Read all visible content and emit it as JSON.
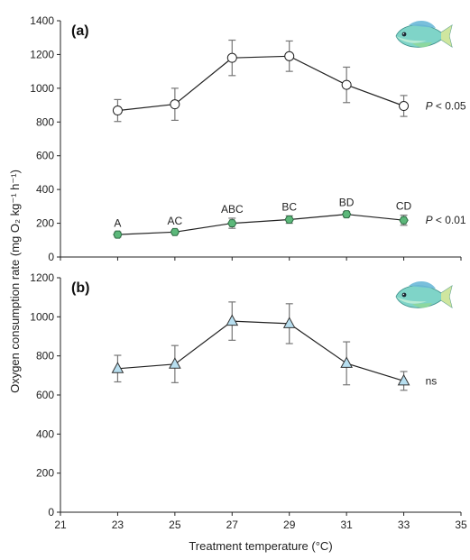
{
  "figure": {
    "xlabel": "Treatment temperature (°C)",
    "ylabel": "Oxygen consumption rate (mg O₂ kg⁻¹ h⁻¹)",
    "xlim": [
      21,
      35
    ],
    "xticks": [
      21,
      23,
      25,
      27,
      29,
      31,
      33,
      35
    ]
  },
  "chart_data": [
    {
      "type": "line",
      "panel_label": "(a)",
      "ylim": [
        0,
        1400
      ],
      "yticks": [
        0,
        200,
        400,
        600,
        800,
        1000,
        1200,
        1400
      ],
      "illustration": "fish-icon",
      "series": [
        {
          "marker": "circle",
          "fill": "#ffffff",
          "x": [
            23,
            25,
            27,
            29,
            31,
            33
          ],
          "y": [
            868,
            905,
            1180,
            1190,
            1020,
            895
          ],
          "err": [
            65,
            95,
            105,
            90,
            105,
            62
          ],
          "annotation": "P < 0.05",
          "point_labels": []
        },
        {
          "marker": "hexagon",
          "fill": "#5cb87a",
          "x": [
            23,
            25,
            27,
            29,
            31,
            33
          ],
          "y": [
            133,
            148,
            200,
            222,
            253,
            218
          ],
          "err": [
            15,
            12,
            30,
            22,
            16,
            30
          ],
          "annotation": "P < 0.01",
          "point_labels": [
            "A",
            "AC",
            "ABC",
            "BC",
            "BD",
            "CD"
          ]
        }
      ]
    },
    {
      "type": "line",
      "panel_label": "(b)",
      "ylim": [
        0,
        1200
      ],
      "yticks": [
        0,
        200,
        400,
        600,
        800,
        1000,
        1200
      ],
      "illustration": "fish-icon",
      "series": [
        {
          "marker": "triangle",
          "fill": "#b8dff0",
          "x": [
            23,
            25,
            27,
            29,
            31,
            33
          ],
          "y": [
            735,
            758,
            978,
            965,
            762,
            672
          ],
          "err": [
            68,
            95,
            98,
            102,
            110,
            48
          ],
          "annotation": "ns",
          "point_labels": []
        }
      ]
    }
  ]
}
